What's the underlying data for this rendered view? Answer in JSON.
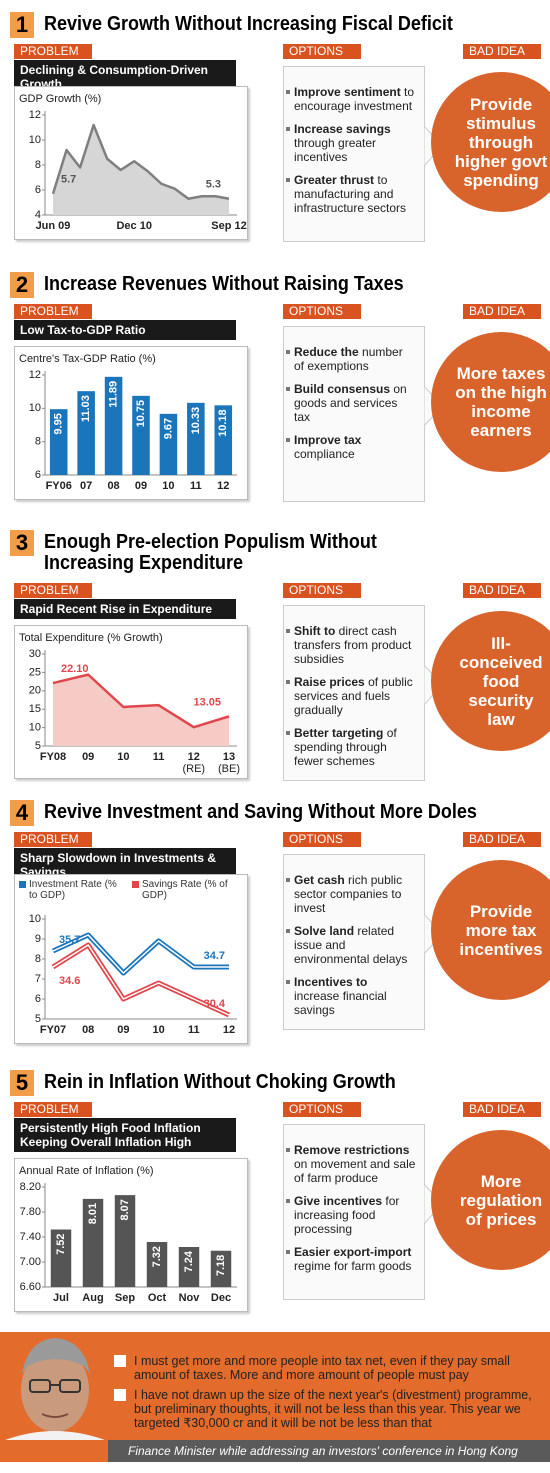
{
  "sections": [
    {
      "number": "1",
      "title_lines": [
        "Revive Growth Without Increasing Fiscal Deficit"
      ],
      "problem_tag": "PROBLEM",
      "problem_lines": [
        "Declining & Consumption-Driven Growth"
      ],
      "options_tag": "OPTIONS",
      "options": [
        {
          "bold": "Improve sentiment",
          "text": "to encourage investment"
        },
        {
          "bold": "Increase savings",
          "text": "through greater incentives"
        },
        {
          "bold": "Greater thrust",
          "text": "to manufacturing and infrastructure sectors"
        }
      ],
      "bad_idea_tag": "BAD IDEA",
      "bad_idea": "Provide stimulus through higher govt spending"
    },
    {
      "number": "2",
      "title_lines": [
        "Increase Revenues Without Raising Taxes"
      ],
      "problem_tag": "PROBLEM",
      "problem_lines": [
        "Low Tax-to-GDP Ratio"
      ],
      "options_tag": "OPTIONS",
      "options": [
        {
          "bold": "Reduce the",
          "text": "number of exemptions"
        },
        {
          "bold": "Build consensus",
          "text": "on goods and services tax"
        },
        {
          "bold": "Improve tax",
          "text": "compliance"
        }
      ],
      "bad_idea_tag": "BAD IDEA",
      "bad_idea": "More taxes on the high income earners"
    },
    {
      "number": "3",
      "title_lines": [
        "Enough Pre-election Populism Without",
        "Increasing Expenditure"
      ],
      "problem_tag": "PROBLEM",
      "problem_lines": [
        "Rapid Recent Rise in Expenditure"
      ],
      "options_tag": "OPTIONS",
      "options": [
        {
          "bold": "Shift to",
          "text": "direct cash transfers from product subsidies"
        },
        {
          "bold": "Raise prices",
          "text": "of public services and fuels gradually"
        },
        {
          "bold": "Better targeting",
          "text": "of spending through fewer schemes"
        }
      ],
      "bad_idea_tag": "BAD IDEA",
      "bad_idea": "Ill-conceived food security law"
    },
    {
      "number": "4",
      "title_lines": [
        "Revive Investment and Saving Without More Doles"
      ],
      "problem_tag": "PROBLEM",
      "problem_lines": [
        "Sharp Slowdown in Investments & Savings"
      ],
      "options_tag": "OPTIONS",
      "options": [
        {
          "bold": "Get cash",
          "text": "rich public sector companies to invest"
        },
        {
          "bold": "Solve land",
          "text": "related issue and environmental delays"
        },
        {
          "bold": "Incentives to",
          "text": "increase financial savings"
        }
      ],
      "bad_idea_tag": "BAD IDEA",
      "bad_idea": "Provide more tax incentives"
    },
    {
      "number": "5",
      "title_lines": [
        "Rein in Inflation Without Choking Growth"
      ],
      "problem_tag": "PROBLEM",
      "problem_lines": [
        "Persistently High Food Inflation",
        "Keeping Overall Inflation High"
      ],
      "options_tag": "OPTIONS",
      "options": [
        {
          "bold": "Remove restrictions",
          "text": "on movement and sale of farm produce"
        },
        {
          "bold": "Give incentives",
          "text": "for increasing food processing"
        },
        {
          "bold": "Easier export-import",
          "text": "regime for farm goods"
        }
      ],
      "bad_idea_tag": "BAD IDEA",
      "bad_idea": "More regulation of prices"
    }
  ],
  "chart_data": [
    {
      "type": "area",
      "y_label": "GDP Growth (%)",
      "categories": [
        "Jun 09",
        null,
        null,
        null,
        null,
        null,
        "Dec 10",
        null,
        null,
        null,
        null,
        null,
        null,
        "Sep 12"
      ],
      "values": [
        5.7,
        9.2,
        7.8,
        11.2,
        8.5,
        7.6,
        8.3,
        7.5,
        6.5,
        6.1,
        5.3,
        5.5,
        5.5,
        5.3
      ],
      "value_labels": [
        "5.7",
        null,
        null,
        null,
        null,
        null,
        null,
        null,
        null,
        null,
        null,
        null,
        null,
        "5.3"
      ],
      "color": "#7f7f7f",
      "fill": "#d6d6d6",
      "ylim": [
        4,
        12
      ],
      "yticks": [
        4,
        6,
        8,
        10,
        12
      ],
      "grid": false
    },
    {
      "type": "bar",
      "y_label": "Centre's Tax-GDP Ratio (%)",
      "categories": [
        "FY06",
        "07",
        "08",
        "09",
        "10",
        "11",
        "12"
      ],
      "values": [
        9.95,
        11.03,
        11.89,
        10.75,
        9.67,
        10.33,
        10.18
      ],
      "color": "#1b75bb",
      "ylim": [
        6,
        12
      ],
      "yticks": [
        6,
        8,
        10,
        12
      ],
      "grid": false
    },
    {
      "type": "area",
      "y_label": "Total Expenditure (% Growth)",
      "categories": [
        "FY08",
        "09",
        "10",
        "11",
        "12",
        "13"
      ],
      "category_notes": [
        null,
        null,
        null,
        null,
        "(RE)",
        "(BE)"
      ],
      "values": [
        22.1,
        24.4,
        15.6,
        16.1,
        10.1,
        13.05
      ],
      "value_labels": [
        "22.10",
        null,
        null,
        null,
        null,
        "13.05"
      ],
      "color": "#e0474c",
      "fill": "#f6cbc6",
      "ylim": [
        5,
        30
      ],
      "yticks": [
        5,
        10,
        15,
        20,
        25,
        30
      ],
      "grid": false
    },
    {
      "type": "line",
      "categories": [
        "FY07",
        "08",
        "09",
        "10",
        "11",
        "12"
      ],
      "series": [
        {
          "name": "Investment Rate (% to GDP)",
          "color": "#1b75bb",
          "values": [
            8.4,
            9.2,
            7.3,
            8.9,
            7.6,
            7.6
          ],
          "annotations": [
            "35.7",
            "34.7"
          ]
        },
        {
          "name": "Savings Rate (% of GDP)",
          "color": "#e0474c",
          "values": [
            7.6,
            8.7,
            6.0,
            6.8,
            6.0,
            5.2
          ],
          "annotations": [
            "34.6",
            "30.4"
          ]
        }
      ],
      "ylim": [
        5,
        10
      ],
      "yticks": [
        5,
        6,
        7,
        8,
        9,
        10
      ],
      "grid": false
    },
    {
      "type": "bar",
      "y_label": "Annual Rate of Inflation (%)",
      "categories": [
        "Jul",
        "Aug",
        "Sep",
        "Oct",
        "Nov",
        "Dec"
      ],
      "values": [
        7.52,
        8.01,
        8.07,
        7.32,
        7.24,
        7.18
      ],
      "color": "#555555",
      "ylim": [
        6.6,
        8.2
      ],
      "yticks": [
        {
          "value": 6.6,
          "label": "6.60"
        },
        {
          "value": 7,
          "label": "7.00"
        },
        {
          "value": 7.4,
          "label": "7.40"
        },
        {
          "value": 7.8,
          "label": "7.80"
        },
        {
          "value": 8.2,
          "label": "8.20"
        }
      ],
      "grid": false
    }
  ],
  "footer": {
    "quotes": [
      "I must get more and more people into tax net, even if they pay small amount of taxes. More and more amount of people must pay",
      "I have not drawn up the size of the next year's (divestment) programme, but preliminary thoughts, it will not be less than this year. This year we targeted ₹30,000 cr and it will be not be less than that"
    ],
    "caption": "Finance Minister while addressing an investors' conference in Hong Kong"
  }
}
